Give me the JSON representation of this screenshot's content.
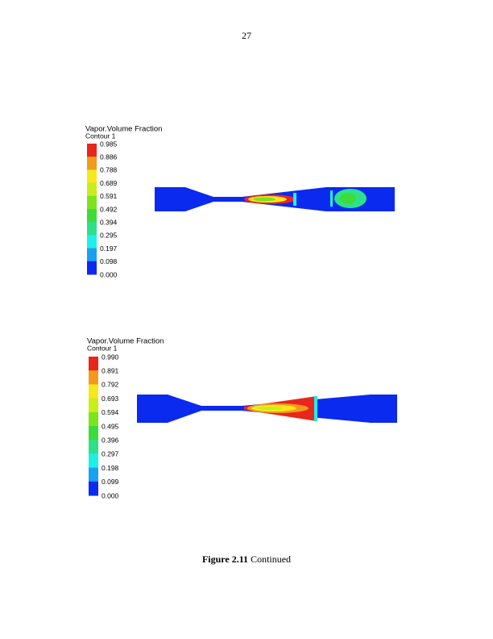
{
  "page_number": "27",
  "figures": [
    {
      "legend": {
        "title": "Vapor.Volume Fraction",
        "subtitle": "Contour 1",
        "levels": [
          "0.985",
          "0.886",
          "0.788",
          "0.689",
          "0.591",
          "0.492",
          "0.394",
          "0.295",
          "0.197",
          "0.098",
          "0.000"
        ]
      }
    },
    {
      "legend": {
        "title": "Vapor.Volume Fraction",
        "subtitle": "Contour 1",
        "levels": [
          "0.990",
          "0.891",
          "0.792",
          "0.693",
          "0.594",
          "0.495",
          "0.396",
          "0.297",
          "0.198",
          "0.099",
          "0.000"
        ]
      }
    }
  ],
  "caption": {
    "label": "Figure 2.11",
    "text": "Continued"
  }
}
